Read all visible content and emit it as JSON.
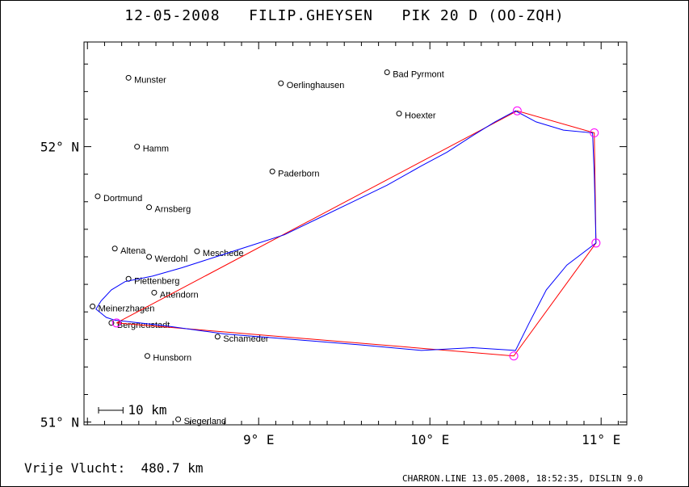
{
  "header": {
    "date": "12-05-2008",
    "pilot": "FILIP.GHEYSEN",
    "glider": "PIK 20 D (OO-ZQH)"
  },
  "footer": {
    "distance_label": "Vrije Vlucht:",
    "distance_value": "480.7 km",
    "credits": "CHARRON.LINE 13.05.2008, 18:52:35, DISLIN 9.0"
  },
  "map": {
    "x_axis": {
      "range": [
        7.98,
        11.15
      ],
      "ticks": [
        9,
        10,
        11
      ],
      "labels": [
        "9° E",
        "10° E",
        "11° E"
      ]
    },
    "y_axis": {
      "range": [
        50.99,
        52.38
      ],
      "ticks": [
        51,
        52
      ],
      "labels": [
        "51° N",
        "52° N"
      ]
    },
    "scale_bar_label": "10 km",
    "colors": {
      "task": "#ff0000",
      "track": "#0000ff",
      "turnpoint": "#ff00ff",
      "towns": "#000000"
    },
    "towns": [
      {
        "name": "Munster",
        "lon": 8.24,
        "lat": 52.25
      },
      {
        "name": "Oerlinghausen",
        "lon": 9.13,
        "lat": 52.23
      },
      {
        "name": "Bad Pyrmont",
        "lon": 9.75,
        "lat": 52.27
      },
      {
        "name": "Hoexter",
        "lon": 9.82,
        "lat": 52.12
      },
      {
        "name": "Hamm",
        "lon": 8.29,
        "lat": 52.0
      },
      {
        "name": "Paderborn",
        "lon": 9.08,
        "lat": 51.91
      },
      {
        "name": "Dortmund",
        "lon": 8.06,
        "lat": 51.82
      },
      {
        "name": "Arnsberg",
        "lon": 8.36,
        "lat": 51.78
      },
      {
        "name": "Altena",
        "lon": 8.16,
        "lat": 51.63
      },
      {
        "name": "Werdohl",
        "lon": 8.36,
        "lat": 51.6
      },
      {
        "name": "Meschede",
        "lon": 8.64,
        "lat": 51.62
      },
      {
        "name": "Plettenberg",
        "lon": 8.24,
        "lat": 51.52
      },
      {
        "name": "Attendorn",
        "lon": 8.39,
        "lat": 51.47
      },
      {
        "name": "Meinerzhagen",
        "lon": 8.03,
        "lat": 51.42
      },
      {
        "name": "Bergneustadt",
        "lon": 8.14,
        "lat": 51.36
      },
      {
        "name": "Schameder",
        "lon": 8.76,
        "lat": 51.31
      },
      {
        "name": "Hunsborn",
        "lon": 8.35,
        "lat": 51.24
      },
      {
        "name": "Siegerland",
        "lon": 8.53,
        "lat": 51.01
      }
    ],
    "task": [
      {
        "lon": 8.17,
        "lat": 51.36
      },
      {
        "lon": 10.51,
        "lat": 52.13
      },
      {
        "lon": 10.96,
        "lat": 52.05
      },
      {
        "lon": 10.97,
        "lat": 51.65
      },
      {
        "lon": 10.49,
        "lat": 51.24
      },
      {
        "lon": 8.17,
        "lat": 51.36
      }
    ],
    "track": [
      {
        "lon": 8.16,
        "lat": 51.37
      },
      {
        "lon": 8.11,
        "lat": 51.38
      },
      {
        "lon": 8.05,
        "lat": 51.41
      },
      {
        "lon": 8.08,
        "lat": 51.44
      },
      {
        "lon": 8.14,
        "lat": 51.48
      },
      {
        "lon": 8.22,
        "lat": 51.51
      },
      {
        "lon": 8.38,
        "lat": 51.53
      },
      {
        "lon": 8.55,
        "lat": 51.56
      },
      {
        "lon": 8.75,
        "lat": 51.6
      },
      {
        "lon": 8.95,
        "lat": 51.64
      },
      {
        "lon": 9.15,
        "lat": 51.68
      },
      {
        "lon": 9.35,
        "lat": 51.74
      },
      {
        "lon": 9.55,
        "lat": 51.8
      },
      {
        "lon": 9.75,
        "lat": 51.86
      },
      {
        "lon": 9.95,
        "lat": 51.93
      },
      {
        "lon": 10.1,
        "lat": 51.98
      },
      {
        "lon": 10.25,
        "lat": 52.04
      },
      {
        "lon": 10.38,
        "lat": 52.09
      },
      {
        "lon": 10.5,
        "lat": 52.13
      },
      {
        "lon": 10.62,
        "lat": 52.09
      },
      {
        "lon": 10.78,
        "lat": 52.06
      },
      {
        "lon": 10.95,
        "lat": 52.05
      },
      {
        "lon": 10.96,
        "lat": 51.9
      },
      {
        "lon": 10.97,
        "lat": 51.65
      },
      {
        "lon": 10.8,
        "lat": 51.57
      },
      {
        "lon": 10.68,
        "lat": 51.48
      },
      {
        "lon": 10.58,
        "lat": 51.36
      },
      {
        "lon": 10.5,
        "lat": 51.26
      },
      {
        "lon": 10.25,
        "lat": 51.27
      },
      {
        "lon": 9.95,
        "lat": 51.26
      },
      {
        "lon": 9.6,
        "lat": 51.28
      },
      {
        "lon": 9.2,
        "lat": 51.3
      },
      {
        "lon": 8.8,
        "lat": 51.32
      },
      {
        "lon": 8.45,
        "lat": 51.35
      },
      {
        "lon": 8.16,
        "lat": 51.37
      }
    ]
  }
}
